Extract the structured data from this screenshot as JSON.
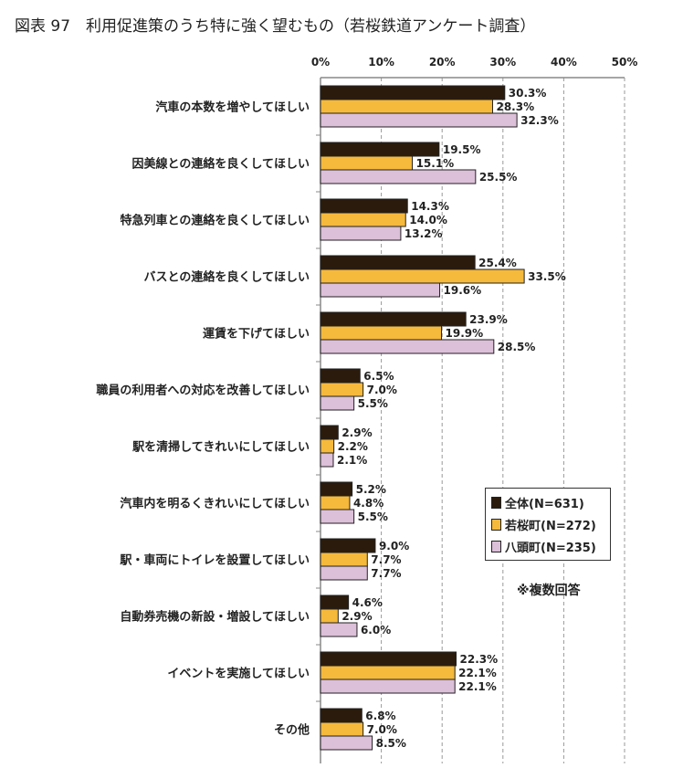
{
  "title": "図表 97　利用促進策のうち特に強く望むもの（若桜鉄道アンケート調査）",
  "note": "※複数回答",
  "chart_data": {
    "type": "bar",
    "orientation": "horizontal",
    "title": "図表 97　利用促進策のうち特に強く望むもの（若桜鉄道アンケート調査）",
    "xlim": [
      0,
      50
    ],
    "xticks": [
      "0%",
      "10%",
      "20%",
      "30%",
      "40%",
      "50%"
    ],
    "grid": true,
    "legend_position": "right",
    "categories": [
      "汽車の本数を増やしてほしい",
      "因美線との連絡を良くしてほしい",
      "特急列車との連絡を良くしてほしい",
      "バスとの連絡を良くしてほしい",
      "運賃を下げてほしい",
      "職員の利用者への対応を改善してほしい",
      "駅を清掃してきれいにしてほしい",
      "汽車内を明るくきれいにしてほしい",
      "駅・車両にトイレを設置してほしい",
      "自動券売機の新設・増設してほしい",
      "イベントを実施してほしい",
      "その他"
    ],
    "series": [
      {
        "name": "全体(N=631)",
        "color": "#2b1b0c",
        "values": [
          30.3,
          19.5,
          14.3,
          25.4,
          23.9,
          6.5,
          2.9,
          5.2,
          9.0,
          4.6,
          22.3,
          6.8
        ]
      },
      {
        "name": "若桜町(N=272)",
        "color": "#f5b93b",
        "values": [
          28.3,
          15.1,
          14.0,
          33.5,
          19.9,
          7.0,
          2.2,
          4.8,
          7.7,
          2.9,
          22.1,
          7.0
        ]
      },
      {
        "name": "八頭町(N=235)",
        "color": "#dcbfd8",
        "values": [
          32.3,
          25.5,
          13.2,
          19.6,
          28.5,
          5.5,
          2.1,
          5.5,
          7.7,
          6.0,
          22.1,
          8.5
        ]
      }
    ]
  }
}
